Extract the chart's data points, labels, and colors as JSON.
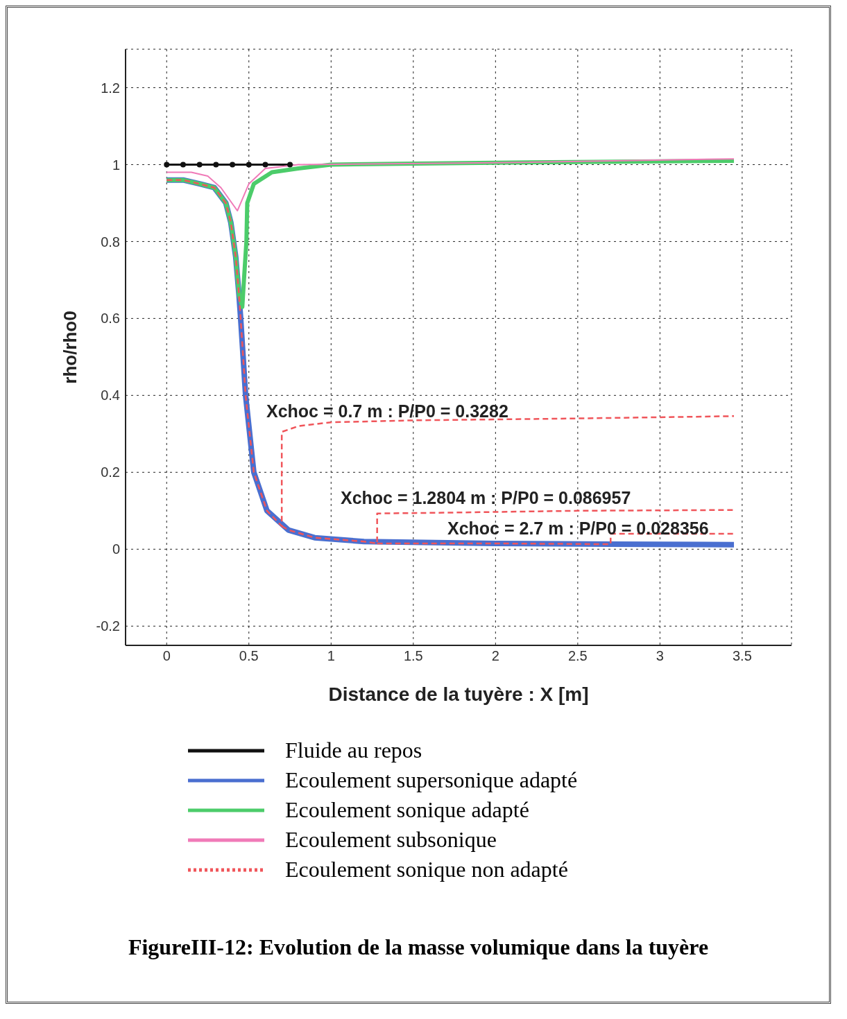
{
  "chart_data": {
    "type": "line",
    "title": "FigureIII-12: Evolution de la masse volumique dans la tuyère",
    "xlabel": "Distance  de la tuyère : X [m]",
    "ylabel": "rho/rho0",
    "xlim": [
      -0.25,
      3.8
    ],
    "ylim": [
      -0.25,
      1.3
    ],
    "xticks": [
      0,
      0.5,
      1,
      1.5,
      2,
      2.5,
      3,
      3.5
    ],
    "yticks": [
      -0.2,
      0,
      0.2,
      0.4,
      0.6,
      0.8,
      1,
      1.2
    ],
    "grid": true,
    "legend": "bottom",
    "line_style": "solid",
    "series": [
      {
        "name": "Fluide au repos",
        "color": "#111111",
        "marker": "circle",
        "x": [
          0,
          0.1,
          0.2,
          0.3,
          0.4,
          0.5,
          0.6,
          0.75
        ],
        "values": [
          1,
          1,
          1,
          1,
          1,
          1,
          1,
          1
        ]
      },
      {
        "name": "Ecoulement supersonique adapté",
        "color": "#4a6fd0",
        "x": [
          0,
          0.1,
          0.2,
          0.29,
          0.36,
          0.39,
          0.42,
          0.44,
          0.45,
          0.48,
          0.53,
          0.61,
          0.74,
          0.9,
          1.2,
          2,
          2.7,
          3.45
        ],
        "values": [
          0.96,
          0.96,
          0.95,
          0.94,
          0.9,
          0.85,
          0.76,
          0.66,
          0.6,
          0.4,
          0.2,
          0.1,
          0.05,
          0.03,
          0.02,
          0.015,
          0.013,
          0.012
        ]
      },
      {
        "name": "Ecoulement sonique adapté",
        "color": "#4ccc6a",
        "x": [
          0,
          0.1,
          0.2,
          0.29,
          0.36,
          0.39,
          0.42,
          0.44,
          0.46,
          0.47,
          0.485,
          0.49,
          0.53,
          0.64,
          0.8,
          1,
          2,
          3.45
        ],
        "values": [
          0.96,
          0.96,
          0.95,
          0.94,
          0.9,
          0.85,
          0.76,
          0.66,
          0.63,
          0.7,
          0.8,
          0.9,
          0.95,
          0.98,
          0.99,
          1,
          1.005,
          1.01
        ]
      },
      {
        "name": "Ecoulement subsonique",
        "color": "#f07ab8",
        "x": [
          0,
          0.15,
          0.25,
          0.33,
          0.43,
          0.5,
          0.6,
          0.8,
          2,
          3.45
        ],
        "values": [
          0.98,
          0.98,
          0.97,
          0.94,
          0.88,
          0.95,
          0.99,
          1,
          1.005,
          1.015
        ]
      },
      {
        "name": "Ecoulement sonique non adapté",
        "color": "#f0555a",
        "line_style": "dashed",
        "x": [
          0,
          0.1,
          0.2,
          0.29,
          0.36,
          0.39,
          0.42,
          0.44,
          0.45,
          0.48,
          0.53,
          0.61,
          0.7,
          0.7,
          0.8,
          1,
          1.5,
          2.5,
          3.45
        ],
        "values": [
          0.96,
          0.96,
          0.95,
          0.94,
          0.9,
          0.85,
          0.76,
          0.66,
          0.6,
          0.4,
          0.2,
          0.1,
          0.06,
          0.305,
          0.32,
          0.33,
          0.335,
          0.34,
          0.346
        ]
      },
      {
        "color": "#f0555a",
        "line_style": "dashed",
        "x": [
          0.7,
          0.74,
          0.9,
          1.2,
          1.28,
          1.28,
          1.7,
          2.5,
          3.45
        ],
        "values": [
          0.06,
          0.05,
          0.03,
          0.02,
          0.015,
          0.093,
          0.095,
          0.1,
          0.102
        ]
      },
      {
        "color": "#f0555a",
        "line_style": "dashed",
        "x": [
          1.28,
          2,
          2.7,
          2.7,
          3.45
        ],
        "values": [
          0.015,
          0.015,
          0.013,
          0.04,
          0.04
        ]
      }
    ],
    "annotations": [
      "Xchoc = 0.7 m : P/P0 = 0.3282",
      "Xchoc = 1.2804 m : P/P0 = 0.086957",
      "Xchoc = 2.7 m : P/P0 = 0.028356"
    ]
  }
}
